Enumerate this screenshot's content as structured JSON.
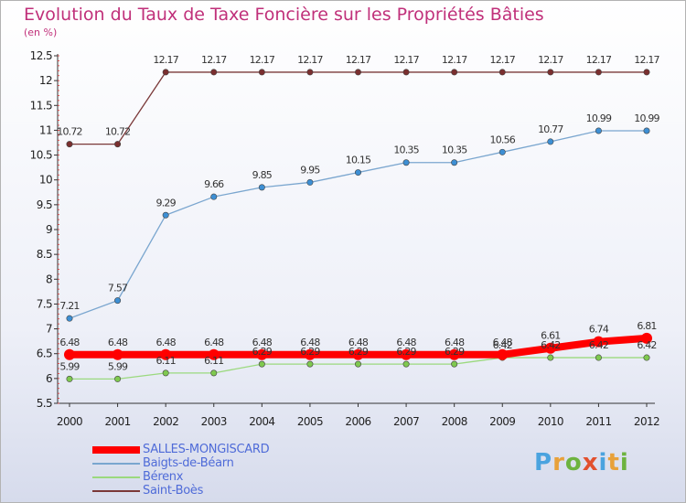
{
  "title": "Evolution du Taux de Taxe Foncière sur les Propriétés Bâties",
  "subtitle": "(en %)",
  "logo": {
    "letters": [
      "P",
      "r",
      "o",
      "x",
      "i",
      "t",
      "i"
    ],
    "colors": [
      "#4aa3df",
      "#e8a13a",
      "#6db33f",
      "#e2502e",
      "#4aa3df",
      "#e8a13a",
      "#6db33f"
    ]
  },
  "chart_data": {
    "type": "line",
    "title": "Evolution du Taux de Taxe Foncière sur les Propriétés Bâties",
    "ylabel": "(en %)",
    "ylim": [
      5.5,
      12.5
    ],
    "yticks": [
      5.5,
      6,
      6.5,
      7,
      7.5,
      8,
      8.5,
      9,
      9.5,
      10,
      10.5,
      11,
      11.5,
      12,
      12.5
    ],
    "ytick_labels": [
      "5.5",
      "6",
      "6.5",
      "7",
      "7.5",
      "8",
      "8.5",
      "9",
      "9.5",
      "10",
      "10.5",
      "11",
      "11.5",
      "12",
      "12.5"
    ],
    "categories": [
      "2000",
      "2001",
      "2002",
      "2003",
      "2004",
      "2005",
      "2006",
      "2007",
      "2008",
      "2009",
      "2010",
      "2011",
      "2012"
    ],
    "series": [
      {
        "name": "SALLES-MONGISCARD",
        "color": "#ff0000",
        "width": 8,
        "marker": 6,
        "values": [
          6.48,
          6.48,
          6.48,
          6.48,
          6.48,
          6.48,
          6.48,
          6.48,
          6.48,
          6.48,
          6.61,
          6.74,
          6.81
        ],
        "labels": [
          "6.48",
          "6.48",
          "6.48",
          "6.48",
          "6.48",
          "6.48",
          "6.48",
          "6.48",
          "6.48",
          "6.48",
          "6.61",
          "6.74",
          "6.81"
        ]
      },
      {
        "name": "Baigts-de-Béarn",
        "color": "#7aa6cf",
        "width": 1.3,
        "marker": 3.2,
        "markerFill": "#3d8fd4",
        "values": [
          7.21,
          7.57,
          9.29,
          9.66,
          9.85,
          9.95,
          10.15,
          10.35,
          10.35,
          10.56,
          10.77,
          10.99,
          10.99
        ],
        "labels": [
          "7.21",
          "7.57",
          "9.29",
          "9.66",
          "9.85",
          "9.95",
          "10.15",
          "10.35",
          "10.35",
          "10.56",
          "10.77",
          "10.99",
          "10.99"
        ]
      },
      {
        "name": "Bérenx",
        "color": "#9bd97e",
        "width": 1.3,
        "marker": 3.2,
        "markerFill": "#7fc94f",
        "values": [
          5.99,
          5.99,
          6.11,
          6.11,
          6.29,
          6.29,
          6.29,
          6.29,
          6.29,
          6.42,
          6.42,
          6.42,
          6.42
        ],
        "labels": [
          "5.99",
          "5.99",
          "6.11",
          "6.11",
          "6.29",
          "6.29",
          "6.29",
          "6.29",
          "6.29",
          "6.42",
          "6.42",
          "6.42",
          "6.42"
        ]
      },
      {
        "name": "Saint-Boès",
        "color": "#7a3838",
        "width": 1.3,
        "marker": 3.2,
        "markerFill": "#7a2f2f",
        "values": [
          10.72,
          10.72,
          12.17,
          12.17,
          12.17,
          12.17,
          12.17,
          12.17,
          12.17,
          12.17,
          12.17,
          12.17,
          12.17
        ],
        "labels": [
          "10.72",
          "10.72",
          "12.17",
          "12.17",
          "12.17",
          "12.17",
          "12.17",
          "12.17",
          "12.17",
          "12.17",
          "12.17",
          "12.17",
          "12.17"
        ]
      }
    ],
    "legend_position": "bottom-left",
    "grid": false
  }
}
